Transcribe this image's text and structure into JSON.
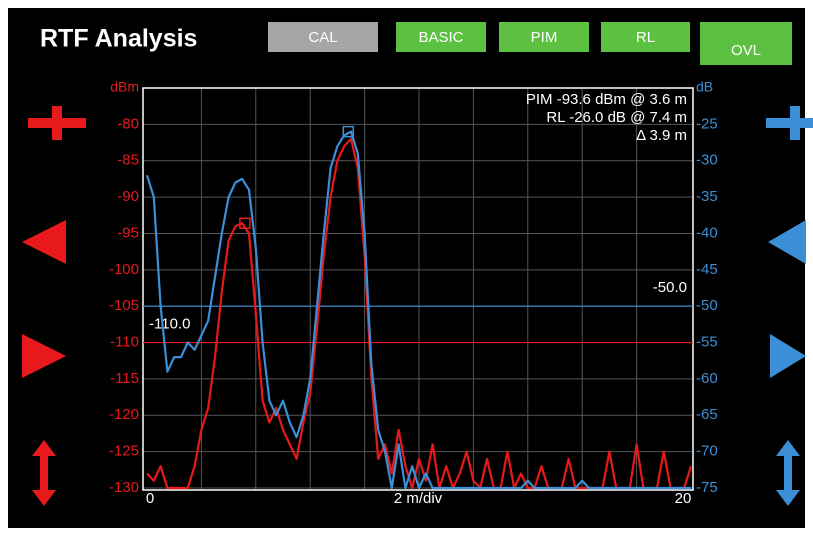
{
  "header": {
    "title": "RTF Analysis",
    "buttons": [
      {
        "label": "CAL",
        "color": "#a6a6a6"
      },
      {
        "label": "BASIC",
        "color": "#5cc040"
      },
      {
        "label": "PIM",
        "color": "#5cc040"
      },
      {
        "label": "RL",
        "color": "#5cc040"
      },
      {
        "label": "OVL",
        "color": "#5cc040"
      }
    ]
  },
  "chart_data": {
    "type": "line",
    "ylabel": "dBm",
    "y2label": "dB",
    "xlabel": "2 m/div",
    "annotations": [
      "PIM -93.6 dBm @ 3.6 m",
      "RL -26.0 dB @ 7.4 m",
      "Δ 3.9 m"
    ],
    "xlim": [
      0,
      20
    ],
    "xticks": [
      0,
      20
    ],
    "xgrid": [
      2,
      4,
      6,
      8,
      10,
      12,
      14,
      16,
      18
    ],
    "ylim": [
      -130,
      -75
    ],
    "yticks": [
      -80,
      -85,
      -90,
      -95,
      -100,
      -105,
      -110,
      -115,
      -120,
      -125,
      -130
    ],
    "y2lim": [
      -75,
      -20
    ],
    "y2ticks": [
      -25,
      -30,
      -35,
      -40,
      -45,
      -50,
      -55,
      -60,
      -65,
      -70,
      -75
    ],
    "grid": true,
    "x": [
      0,
      0.25,
      0.5,
      0.75,
      1,
      1.25,
      1.5,
      1.75,
      2,
      2.25,
      2.5,
      2.75,
      3,
      3.25,
      3.5,
      3.75,
      4,
      4.25,
      4.5,
      4.75,
      5,
      5.25,
      5.5,
      5.75,
      6,
      6.25,
      6.5,
      6.75,
      7,
      7.25,
      7.5,
      7.75,
      8,
      8.25,
      8.5,
      8.75,
      9,
      9.25,
      9.5,
      9.75,
      10,
      10.25,
      10.5,
      10.75,
      11,
      11.25,
      11.5,
      11.75,
      12,
      12.25,
      12.5,
      12.75,
      13,
      13.25,
      13.5,
      13.75,
      14,
      14.25,
      14.5,
      14.75,
      15,
      15.25,
      15.5,
      15.75,
      16,
      16.25,
      16.5,
      16.75,
      17,
      17.25,
      17.5,
      17.75,
      18,
      18.25,
      18.5,
      18.75,
      19,
      19.25,
      19.5,
      19.75,
      20
    ],
    "series": [
      {
        "name": "PIM",
        "color": "#e8191b",
        "axis": "y",
        "values": [
          -128,
          -129,
          -127,
          -130,
          -130,
          -130,
          -130,
          -127,
          -122,
          -119,
          -112,
          -103,
          -96,
          -94,
          -93.6,
          -95,
          -106,
          -118,
          -121,
          -119,
          -122,
          -124,
          -126,
          -121,
          -117,
          -108,
          -98,
          -90,
          -85,
          -83,
          -82,
          -86,
          -98,
          -115,
          -126,
          -124,
          -128,
          -122,
          -127,
          -130,
          -126,
          -129,
          -124,
          -130,
          -127,
          -130,
          -128,
          -125,
          -129,
          -130,
          -126,
          -130,
          -130,
          -125,
          -130,
          -128,
          -130,
          -130,
          -127,
          -130,
          -130,
          -130,
          -126,
          -130,
          -130,
          -130,
          -130,
          -130,
          -125,
          -130,
          -130,
          -130,
          -124,
          -130,
          -130,
          -130,
          -125,
          -130,
          -130,
          -130,
          -127
        ]
      },
      {
        "name": "RL",
        "color": "#3a8fd6",
        "axis": "y2",
        "values": [
          -32,
          -35,
          -50,
          -59,
          -57,
          -57,
          -55,
          -56,
          -54,
          -52,
          -46,
          -40,
          -35,
          -33,
          -32.5,
          -34,
          -42,
          -55,
          -63,
          -65,
          -63,
          -66,
          -68,
          -65,
          -60,
          -50,
          -40,
          -31,
          -28,
          -26.5,
          -26,
          -29,
          -40,
          -58,
          -67,
          -70,
          -75,
          -69,
          -75,
          -72,
          -75,
          -73,
          -75,
          -75,
          -75,
          -75,
          -75,
          -75,
          -75,
          -75,
          -75,
          -75,
          -75,
          -75,
          -75,
          -75,
          -74,
          -75,
          -75,
          -75,
          -75,
          -75,
          -75,
          -75,
          -74,
          -75,
          -75,
          -75,
          -75,
          -75,
          -75,
          -75,
          -75,
          -75,
          -75,
          -75,
          -75,
          -75,
          -75,
          -75,
          -75
        ]
      }
    ],
    "markers": [
      {
        "x": 3.6,
        "y": -93.6,
        "axis": "y",
        "color": "#e8191b"
      },
      {
        "x": 7.4,
        "y": -26,
        "axis": "y2",
        "color": "#3a8fd6"
      }
    ],
    "thresholds": [
      {
        "value": -110,
        "label": "-110.0",
        "axis": "y",
        "color": "#e8191b"
      },
      {
        "value": -50,
        "label": "-50.0",
        "axis": "y2",
        "color": "#3a8fd6"
      }
    ]
  }
}
